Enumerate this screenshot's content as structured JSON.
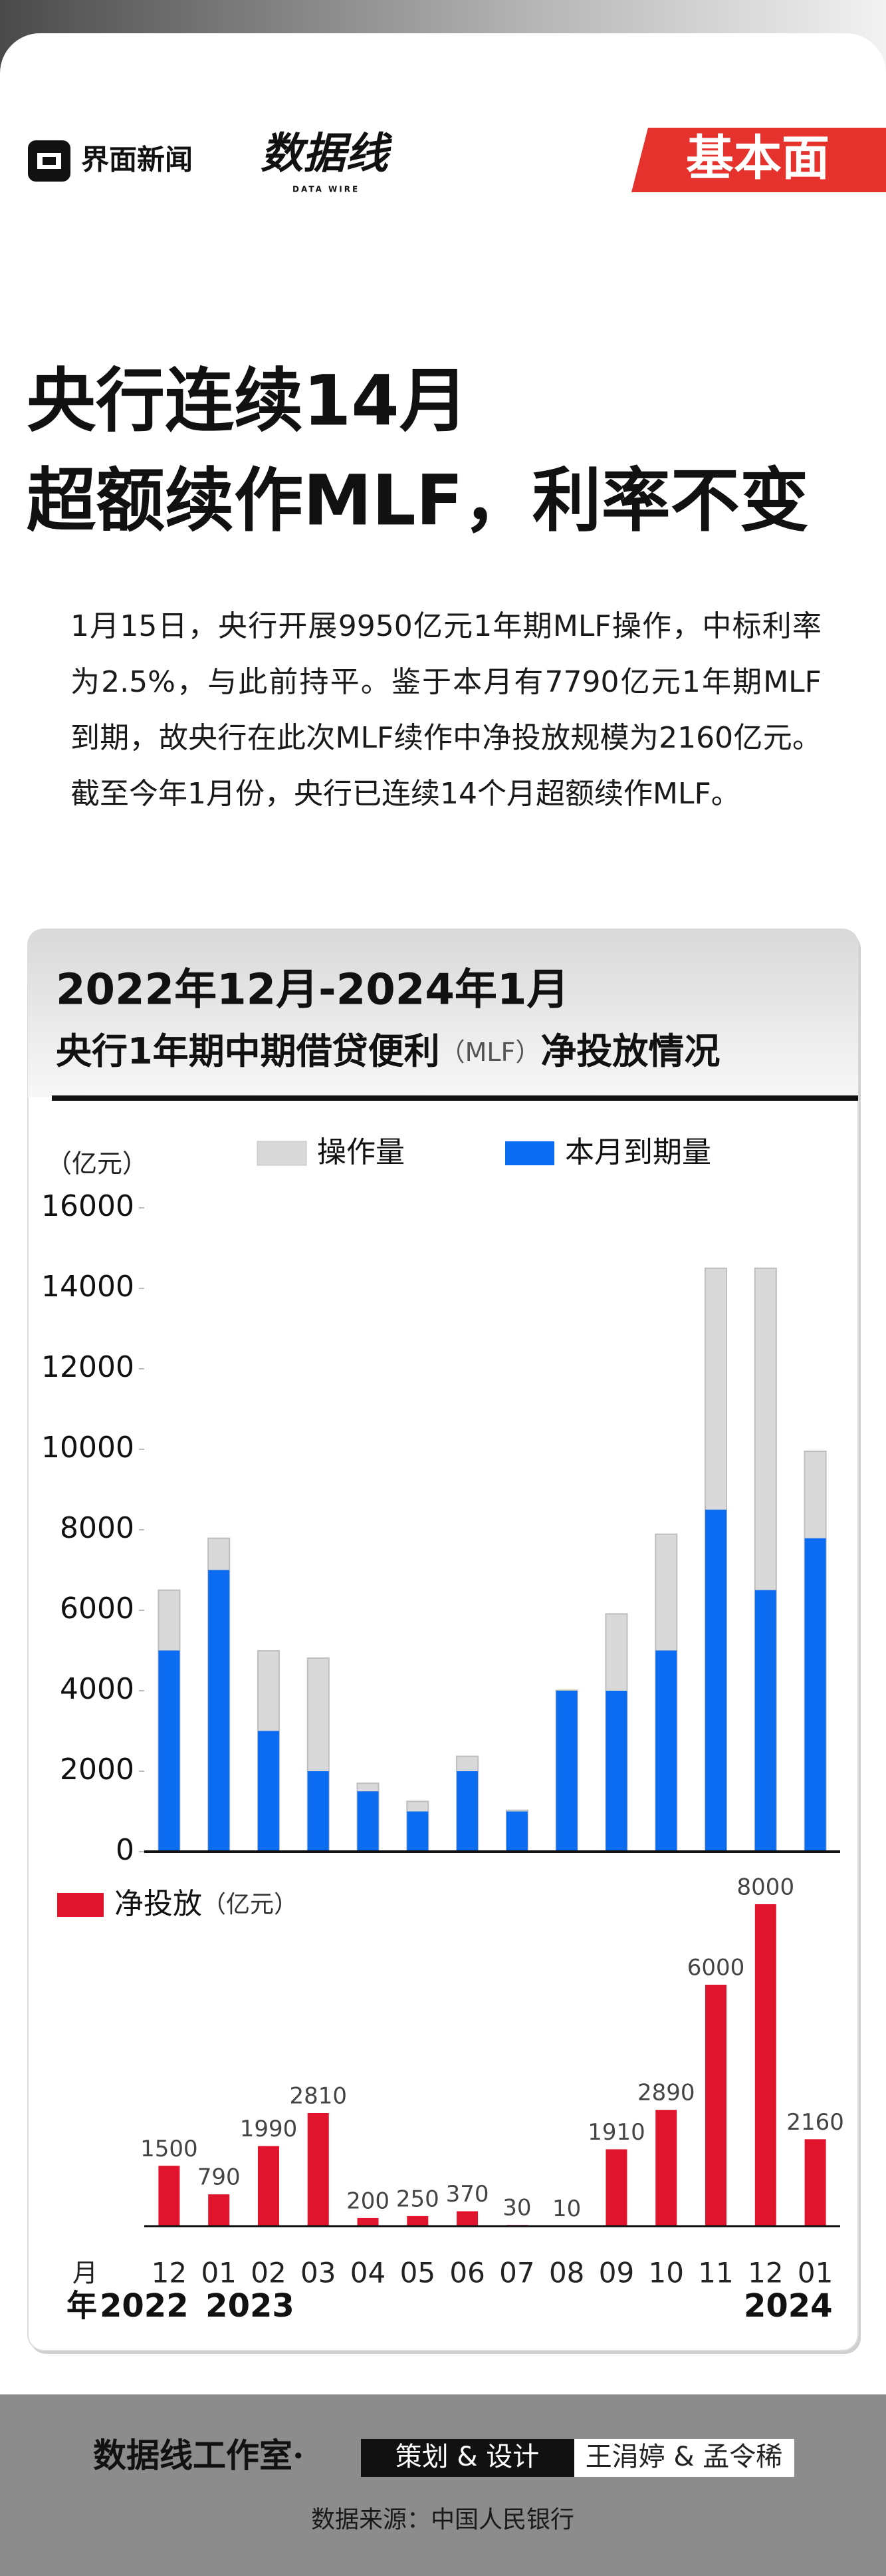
{
  "header": {
    "logo_text": "界面新闻",
    "brand": "数据线",
    "brand_sub": "DATA WIRE",
    "tag": "基本面"
  },
  "article": {
    "title": [
      "央行连续14月",
      "超额续作MLF，利率不变"
    ],
    "body": "1月15日，央行开展9950亿元1年期MLF操作，中标利率为2.5%，与此前持平。鉴于本月有7790亿元1年期MLF到期，故央行在此次MLF续作中净投放规模为2160亿元。截至今年1月份，央行已连续14个月超额续作MLF。"
  },
  "chart_card": {
    "title_line1": "2022年12月-2024年1月",
    "title_line2": [
      "央行1年期中期借贷便利",
      "（MLF）",
      "净投放情况"
    ]
  },
  "chart_data": [
    {
      "type": "overlap-bar",
      "unit": "（亿元）",
      "series": [
        {
          "name": "操作量",
          "color": "#d9d9d9",
          "values": [
            6500,
            7790,
            4990,
            4810,
            1700,
            1250,
            2370,
            1030,
            4010,
            5910,
            7890,
            14500,
            14500,
            9950
          ]
        },
        {
          "name": "本月到期量",
          "color": "#0b6cf2",
          "values": [
            5000,
            7000,
            3000,
            2000,
            1500,
            1000,
            2000,
            1000,
            4000,
            4000,
            5000,
            8500,
            6500,
            7790
          ]
        }
      ],
      "ylim": [
        0,
        16000
      ],
      "yticks": [
        0,
        2000,
        4000,
        6000,
        8000,
        10000,
        12000,
        14000,
        16000
      ]
    },
    {
      "type": "bar",
      "unit": "（亿元）",
      "categories": [
        "12",
        "01",
        "02",
        "03",
        "04",
        "05",
        "06",
        "07",
        "08",
        "09",
        "10",
        "11",
        "12",
        "01"
      ],
      "x_label": "月",
      "year_label": "年",
      "years": [
        "2022",
        "2023",
        null,
        null,
        null,
        null,
        null,
        null,
        null,
        null,
        null,
        null,
        null,
        "2024"
      ],
      "series": [
        {
          "name": "净投放",
          "color": "#e0152d",
          "values": [
            1500,
            790,
            1990,
            2810,
            200,
            250,
            370,
            30,
            10,
            1910,
            2890,
            6000,
            8000,
            2160
          ]
        }
      ]
    }
  ],
  "footer": {
    "studio": "数据线工作室·",
    "role": "策划 & 设计",
    "authors": "王涓婷 & 孟令稀",
    "source": "数据来源：中国人民银行"
  }
}
